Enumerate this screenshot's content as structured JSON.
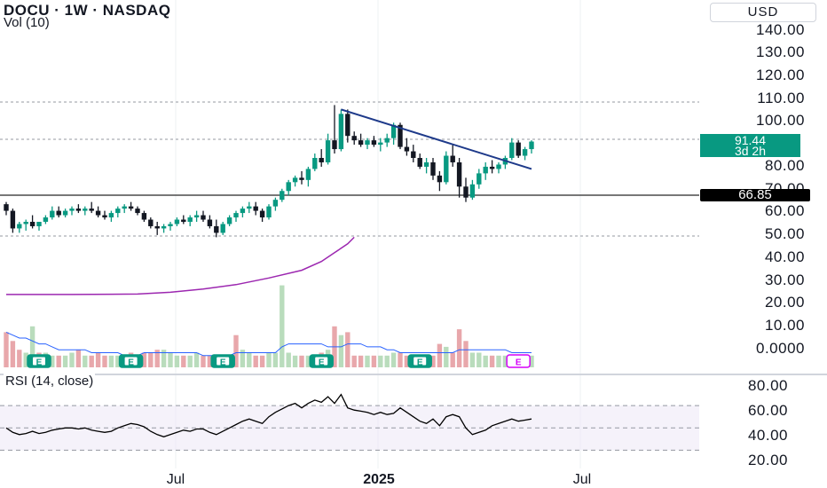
{
  "header": {
    "title": "DOCU · 1W · NASDAQ",
    "volume_label": "Vol (10)",
    "currency": "USD"
  },
  "rsi": {
    "label": "RSI (14, close)",
    "ticks": [
      "80.00",
      "60.00",
      "40.00",
      "20.00"
    ]
  },
  "price_axis": {
    "ticks": [
      "140.00",
      "130.00",
      "120.00",
      "110.00",
      "100.00",
      "80.00",
      "70.00",
      "60.00",
      "50.00",
      "40.00",
      "30.00",
      "20.00",
      "10.00",
      "0.0000"
    ]
  },
  "current_price": {
    "value": "91.44",
    "countdown": "3d 2h"
  },
  "level_line": {
    "value": "66.85"
  },
  "time_axis": {
    "labels": [
      "Jul",
      "2025",
      "Jul"
    ]
  },
  "earnings_marker_label": "E",
  "colors": {
    "up": "#089981",
    "down": "#131722",
    "trendline": "#1e3a8a",
    "ma": "#9c27b0",
    "rsi": "#000000",
    "vol_up": "#b9dcbc",
    "vol_down": "#e8a7ab",
    "vol_ma": "#2962ff",
    "earnings": "#089981",
    "earnings_upcoming": "#d500f9"
  },
  "chart_data": {
    "type": "candlestick",
    "title": "DOCU · 1W · NASDAQ",
    "price_range": [
      -3,
      142
    ],
    "ohlc": [
      [
        63,
        64,
        58,
        60
      ],
      [
        60,
        61,
        50,
        52
      ],
      [
        52,
        55,
        50,
        54
      ],
      [
        54,
        56,
        51,
        55
      ],
      [
        55,
        58,
        52,
        53
      ],
      [
        53,
        55,
        51,
        55
      ],
      [
        55,
        58,
        54,
        57
      ],
      [
        57,
        62,
        56,
        60
      ],
      [
        60,
        62,
        57,
        58
      ],
      [
        58,
        61,
        57,
        60
      ],
      [
        60,
        62,
        58,
        61
      ],
      [
        61,
        63,
        59,
        60
      ],
      [
        60,
        62,
        58,
        61
      ],
      [
        61,
        64,
        59,
        60
      ],
      [
        60,
        62,
        57,
        58
      ],
      [
        58,
        60,
        56,
        57
      ],
      [
        57,
        60,
        55,
        59
      ],
      [
        59,
        62,
        57,
        61
      ],
      [
        61,
        63,
        59,
        62
      ],
      [
        62,
        64,
        60,
        61
      ],
      [
        61,
        62,
        58,
        59
      ],
      [
        59,
        60,
        55,
        56
      ],
      [
        56,
        57,
        52,
        53
      ],
      [
        53,
        55,
        49,
        52
      ],
      [
        52,
        54,
        50,
        53
      ],
      [
        53,
        55,
        51,
        54
      ],
      [
        54,
        57,
        53,
        56
      ],
      [
        56,
        58,
        54,
        55
      ],
      [
        55,
        58,
        53,
        57
      ],
      [
        57,
        60,
        55,
        58
      ],
      [
        58,
        60,
        55,
        56
      ],
      [
        56,
        58,
        52,
        53
      ],
      [
        53,
        56,
        48,
        50
      ],
      [
        50,
        55,
        49,
        54
      ],
      [
        54,
        58,
        53,
        57
      ],
      [
        57,
        60,
        55,
        59
      ],
      [
        59,
        62,
        57,
        61
      ],
      [
        61,
        64,
        59,
        62
      ],
      [
        62,
        64,
        58,
        60
      ],
      [
        60,
        61,
        55,
        57
      ],
      [
        57,
        63,
        56,
        62
      ],
      [
        62,
        66,
        60,
        65
      ],
      [
        65,
        70,
        64,
        69
      ],
      [
        69,
        74,
        67,
        73
      ],
      [
        73,
        76,
        71,
        75
      ],
      [
        75,
        78,
        72,
        74
      ],
      [
        74,
        80,
        71,
        79
      ],
      [
        79,
        86,
        78,
        84
      ],
      [
        84,
        88,
        80,
        82
      ],
      [
        82,
        95,
        81,
        92
      ],
      [
        92,
        108,
        86,
        88
      ],
      [
        88,
        106,
        87,
        104
      ],
      [
        104,
        106,
        91,
        94
      ],
      [
        94,
        96,
        90,
        92
      ],
      [
        92,
        95,
        89,
        90
      ],
      [
        90,
        93,
        88,
        92
      ],
      [
        92,
        94,
        89,
        90
      ],
      [
        90,
        93,
        87,
        91
      ],
      [
        91,
        95,
        89,
        93
      ],
      [
        93,
        100,
        90,
        99
      ],
      [
        99,
        100,
        88,
        89
      ],
      [
        89,
        93,
        85,
        87
      ],
      [
        87,
        90,
        82,
        84
      ],
      [
        84,
        86,
        79,
        80
      ],
      [
        80,
        84,
        77,
        82
      ],
      [
        82,
        84,
        74,
        76
      ],
      [
        76,
        78,
        69,
        73
      ],
      [
        73,
        87,
        72,
        85
      ],
      [
        85,
        90,
        80,
        82
      ],
      [
        82,
        84,
        66,
        71
      ],
      [
        71,
        75,
        64,
        66
      ],
      [
        66,
        74,
        65,
        72
      ],
      [
        72,
        79,
        70,
        77
      ],
      [
        77,
        82,
        74,
        80
      ],
      [
        80,
        83,
        77,
        79
      ],
      [
        79,
        82,
        77,
        81
      ],
      [
        81,
        85,
        79,
        84
      ],
      [
        84,
        93,
        83,
        91
      ],
      [
        91,
        92,
        84,
        85
      ],
      [
        85,
        89,
        83,
        88
      ],
      [
        88,
        92,
        86,
        91.44
      ]
    ],
    "volume": [
      {
        "v": 12,
        "up": false
      },
      {
        "v": 9,
        "up": false
      },
      {
        "v": 6,
        "up": false
      },
      {
        "v": 5,
        "up": true
      },
      {
        "v": 14,
        "up": true
      },
      {
        "v": 5,
        "up": false
      },
      {
        "v": 5,
        "up": true
      },
      {
        "v": 4,
        "up": true
      },
      {
        "v": 4,
        "up": false
      },
      {
        "v": 4,
        "up": true
      },
      {
        "v": 5,
        "up": true
      },
      {
        "v": 6,
        "up": false
      },
      {
        "v": 4,
        "up": true
      },
      {
        "v": 4,
        "up": false
      },
      {
        "v": 5,
        "up": false
      },
      {
        "v": 4,
        "up": false
      },
      {
        "v": 4,
        "up": true
      },
      {
        "v": 4,
        "up": true
      },
      {
        "v": 4,
        "up": false
      },
      {
        "v": 5,
        "up": false
      },
      {
        "v": 4,
        "up": false
      },
      {
        "v": 5,
        "up": false
      },
      {
        "v": 5,
        "up": false
      },
      {
        "v": 6,
        "up": false
      },
      {
        "v": 6,
        "up": true
      },
      {
        "v": 5,
        "up": true
      },
      {
        "v": 4,
        "up": true
      },
      {
        "v": 4,
        "up": false
      },
      {
        "v": 4,
        "up": true
      },
      {
        "v": 5,
        "up": true
      },
      {
        "v": 4,
        "up": false
      },
      {
        "v": 4,
        "up": false
      },
      {
        "v": 4,
        "up": false
      },
      {
        "v": 3,
        "up": true
      },
      {
        "v": 4,
        "up": true
      },
      {
        "v": 11,
        "up": false
      },
      {
        "v": 6,
        "up": true
      },
      {
        "v": 5,
        "up": true
      },
      {
        "v": 4,
        "up": false
      },
      {
        "v": 4,
        "up": false
      },
      {
        "v": 5,
        "up": true
      },
      {
        "v": 5,
        "up": true
      },
      {
        "v": 28,
        "up": true
      },
      {
        "v": 5,
        "up": true
      },
      {
        "v": 4,
        "up": true
      },
      {
        "v": 4,
        "up": false
      },
      {
        "v": 4,
        "up": true
      },
      {
        "v": 4,
        "up": true
      },
      {
        "v": 5,
        "up": false
      },
      {
        "v": 6,
        "up": true
      },
      {
        "v": 14,
        "up": false
      },
      {
        "v": 11,
        "up": true
      },
      {
        "v": 12,
        "up": false
      },
      {
        "v": 4,
        "up": false
      },
      {
        "v": 4,
        "up": false
      },
      {
        "v": 4,
        "up": true
      },
      {
        "v": 4,
        "up": false
      },
      {
        "v": 4,
        "up": true
      },
      {
        "v": 4,
        "up": true
      },
      {
        "v": 5,
        "up": true
      },
      {
        "v": 5,
        "up": false
      },
      {
        "v": 4,
        "up": false
      },
      {
        "v": 4,
        "up": false
      },
      {
        "v": 4,
        "up": false
      },
      {
        "v": 4,
        "up": true
      },
      {
        "v": 4,
        "up": false
      },
      {
        "v": 8,
        "up": false
      },
      {
        "v": 7,
        "up": true
      },
      {
        "v": 5,
        "up": false
      },
      {
        "v": 13,
        "up": false
      },
      {
        "v": 9,
        "up": false
      },
      {
        "v": 5,
        "up": true
      },
      {
        "v": 5,
        "up": true
      },
      {
        "v": 4,
        "up": true
      },
      {
        "v": 4,
        "up": false
      },
      {
        "v": 4,
        "up": true
      },
      {
        "v": 4,
        "up": true
      },
      {
        "v": 4,
        "up": true
      },
      {
        "v": 4,
        "up": false
      },
      {
        "v": 4,
        "up": true
      },
      {
        "v": 4,
        "up": true
      }
    ],
    "volume_ma": [
      12,
      11,
      10,
      10,
      9,
      8,
      8,
      7,
      6,
      6,
      6,
      6,
      6,
      5,
      5,
      5,
      5,
      5,
      4,
      4,
      4,
      5,
      5,
      5,
      5,
      5,
      5,
      5,
      5,
      5,
      4,
      4,
      4,
      4,
      4,
      5,
      5,
      5,
      5,
      5,
      5,
      5,
      7,
      8,
      8,
      8,
      8,
      8,
      8,
      7,
      7,
      7,
      8,
      8,
      8,
      7,
      7,
      7,
      6,
      6,
      5,
      5,
      5,
      5,
      5,
      5,
      5,
      5,
      5,
      6,
      6,
      6,
      6,
      6,
      6,
      6,
      6,
      5,
      5,
      5,
      5
    ],
    "moving_average": [
      [
        0,
        22
      ],
      [
        10,
        22
      ],
      [
        20,
        22.2
      ],
      [
        25,
        23
      ],
      [
        30,
        24.5
      ],
      [
        35,
        26.5
      ],
      [
        40,
        29.5
      ],
      [
        45,
        33
      ],
      [
        48,
        37
      ],
      [
        50,
        41
      ],
      [
        51,
        43
      ],
      [
        52,
        45
      ],
      [
        53,
        48
      ]
    ],
    "trendline": {
      "from": [
        51,
        106
      ],
      "to": [
        80,
        79
      ]
    },
    "level": 66.85,
    "rsi_values": [
      50,
      46,
      44,
      45,
      47,
      45,
      46,
      48,
      49,
      50,
      50,
      49,
      50,
      48,
      47,
      46,
      47,
      50,
      52,
      54,
      53,
      51,
      47,
      44,
      42,
      44,
      46,
      48,
      47,
      49,
      49,
      46,
      44,
      47,
      50,
      53,
      56,
      58,
      56,
      54,
      60,
      64,
      67,
      70,
      72,
      68,
      72,
      75,
      73,
      78,
      72,
      80,
      68,
      66,
      65,
      64,
      62,
      64,
      62,
      63,
      68,
      64,
      60,
      56,
      54,
      58,
      52,
      60,
      62,
      60,
      50,
      44,
      46,
      48,
      52,
      54,
      56,
      58,
      56,
      57,
      58
    ],
    "rsi_range": [
      20,
      90
    ],
    "rsi_bands": [
      70,
      50,
      30
    ],
    "earnings_at": [
      5,
      19,
      33,
      48,
      63
    ],
    "earnings_upcoming_at": 78
  }
}
